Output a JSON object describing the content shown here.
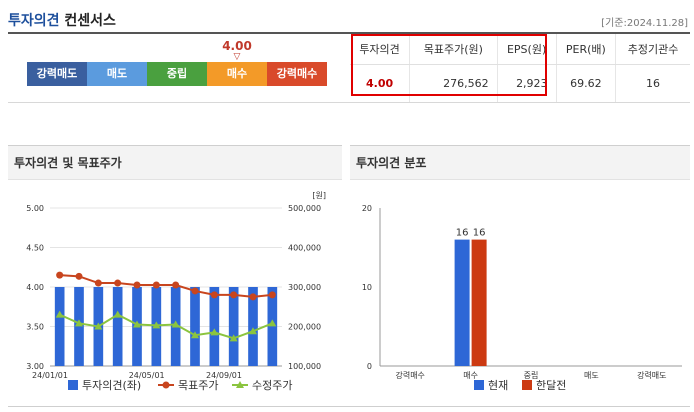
{
  "header": {
    "title_main": "투자의견",
    "title_sub": "컨센서스",
    "date": "[기준:2024.11.28]"
  },
  "opinion_scale": {
    "current_value": "4.00",
    "current_index": 3,
    "segments": [
      {
        "label": "강력매도",
        "color": "#3a5f9f"
      },
      {
        "label": "매도",
        "color": "#5b9bde"
      },
      {
        "label": "중립",
        "color": "#4aa03f"
      },
      {
        "label": "매수",
        "color": "#f39a28"
      },
      {
        "label": "강력매수",
        "color": "#d94a2a"
      }
    ]
  },
  "consensus_table": {
    "headers": [
      "투자의견",
      "목표주가(원)",
      "EPS(원)",
      "PER(배)",
      "추정기관수"
    ],
    "values": [
      "4.00",
      "276,562",
      "2,923",
      "69.62",
      "16"
    ]
  },
  "chart_data": [
    {
      "type": "bar+line",
      "title": "투자의견 및 목표주가",
      "y_left": {
        "min": 3.0,
        "max": 5.0,
        "ticks": [
          "3.00",
          "3.50",
          "4.00",
          "4.50",
          "5.00"
        ]
      },
      "y_right": {
        "min": 100000,
        "max": 500000,
        "unit": "[원]",
        "ticks": [
          "100,000",
          "200,000",
          "300,000",
          "400,000",
          "500,000"
        ]
      },
      "x_tick_labels": [
        "24/01/01",
        "24/05/01",
        "24/09/01"
      ],
      "series": [
        {
          "name": "투자의견(좌)",
          "type": "bar",
          "axis": "left",
          "color": "#2e67d6",
          "values": [
            4.0,
            4.0,
            4.0,
            4.0,
            4.0,
            4.0,
            4.0,
            4.0,
            4.0,
            4.0,
            4.0,
            4.0
          ]
        },
        {
          "name": "목표주가",
          "type": "line",
          "axis": "right",
          "color": "#c8451e",
          "values": [
            330000,
            327000,
            310000,
            310000,
            305000,
            305000,
            305000,
            290000,
            280000,
            280000,
            275000,
            280000
          ]
        },
        {
          "name": "수정주가",
          "type": "line",
          "axis": "right",
          "color": "#8bc43f",
          "values": [
            230000,
            208000,
            200000,
            230000,
            205000,
            203000,
            205000,
            178000,
            185000,
            170000,
            188000,
            208000
          ]
        }
      ]
    },
    {
      "type": "bar",
      "title": "투자의견 분포",
      "y": {
        "min": 0,
        "max": 20,
        "ticks": [
          "0",
          "10",
          "20"
        ]
      },
      "categories": [
        "강력매수",
        "매수",
        "중립",
        "매도",
        "강력매도"
      ],
      "series": [
        {
          "name": "현재",
          "color": "#2e67d6",
          "values": [
            0,
            16,
            0,
            0,
            0
          ]
        },
        {
          "name": "한달전",
          "color": "#cc3a12",
          "values": [
            0,
            16,
            0,
            0,
            0
          ]
        }
      ],
      "data_labels": [
        "16",
        "16"
      ]
    }
  ]
}
